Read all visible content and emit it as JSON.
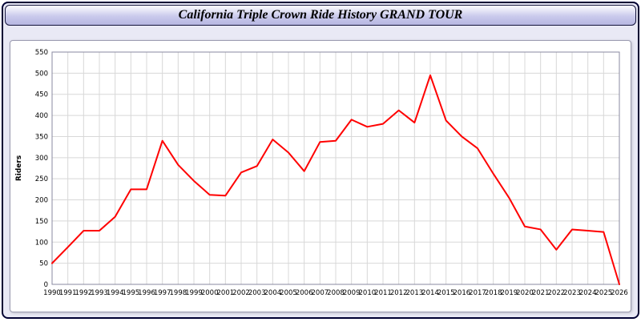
{
  "title": "California Triple Crown Ride History GRAND TOUR",
  "chart_data": {
    "type": "line",
    "title": "California Triple Crown Ride History GRAND TOUR",
    "xlabel": "",
    "ylabel": "Riders",
    "ylim": [
      0,
      550
    ],
    "ytick_step": 50,
    "grid": true,
    "legend": "none",
    "line_color": "#ff0000",
    "grid_color": "#d8d8d8",
    "categories": [
      "1990",
      "1991",
      "1992",
      "1993",
      "1994",
      "1995",
      "1996",
      "1997",
      "1998",
      "1999",
      "2000",
      "2001",
      "2002",
      "2003",
      "2004",
      "2005",
      "2006",
      "2007",
      "2008",
      "2009",
      "2010",
      "2011",
      "2012",
      "2013",
      "2014",
      "2015",
      "2016",
      "2017",
      "2018",
      "2019",
      "2020",
      "2021",
      "2022",
      "2023",
      "2024",
      "2025",
      "2026"
    ],
    "values": [
      50,
      88,
      127,
      127,
      160,
      225,
      225,
      340,
      283,
      245,
      212,
      210,
      265,
      280,
      343,
      312,
      268,
      337,
      340,
      390,
      373,
      380,
      412,
      383,
      495,
      388,
      350,
      322,
      262,
      205,
      137,
      130,
      82,
      130,
      127,
      124,
      0
    ]
  }
}
